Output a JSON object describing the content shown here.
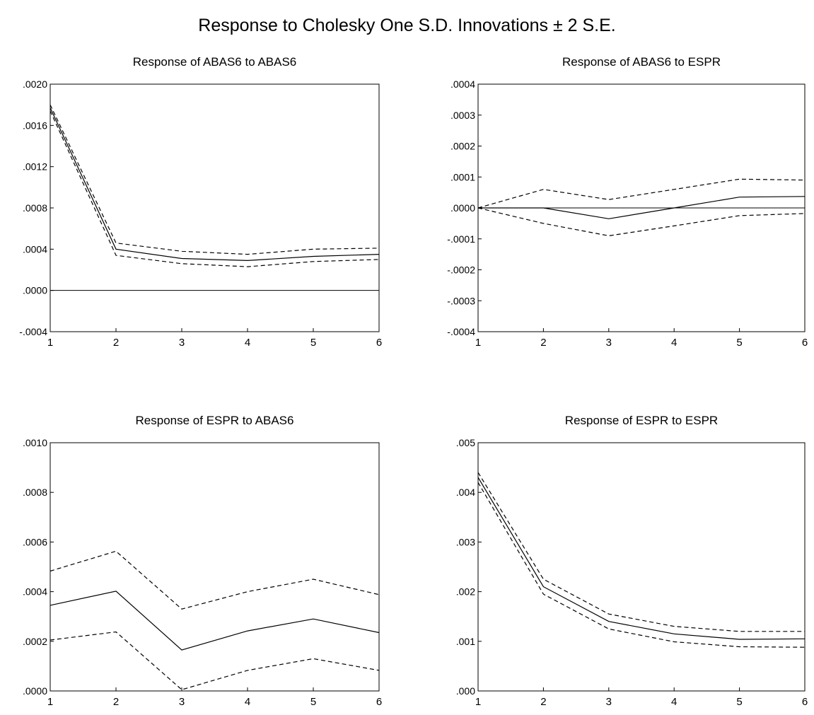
{
  "title": "Response to Cholesky One S.D. Innovations ± 2 S.E.",
  "chart_data": [
    {
      "type": "line",
      "title": "Response of ABAS6 to ABAS6",
      "x": [
        1,
        2,
        3,
        4,
        5,
        6
      ],
      "ylim": [
        -0.0004,
        0.002
      ],
      "yticks": [
        ".0020",
        ".0016",
        ".0012",
        ".0008",
        ".0004",
        ".0000",
        "-.0004"
      ],
      "zero_line": true,
      "series": [
        {
          "style": "solid",
          "values": [
            0.00177,
            0.0004,
            0.00031,
            0.00029,
            0.00033,
            0.00035
          ]
        },
        {
          "style": "dashed",
          "values": [
            0.0018,
            0.00046,
            0.00038,
            0.00035,
            0.0004,
            0.00041
          ]
        },
        {
          "style": "dashed",
          "values": [
            0.00174,
            0.00034,
            0.00026,
            0.00023,
            0.00028,
            0.0003
          ]
        }
      ]
    },
    {
      "type": "line",
      "title": "Response of ABAS6 to ESPR",
      "x": [
        1,
        2,
        3,
        4,
        5,
        6
      ],
      "ylim": [
        -0.0004,
        0.0004
      ],
      "yticks": [
        ".0004",
        ".0003",
        ".0002",
        ".0001",
        ".0000",
        "-.0001",
        "-.0002",
        "-.0003",
        "-.0004"
      ],
      "zero_line": true,
      "series": [
        {
          "style": "solid",
          "values": [
            0.0,
            0.0,
            -3.5e-05,
            0.0,
            3.5e-05,
            3.7e-05
          ]
        },
        {
          "style": "dashed",
          "values": [
            0.0,
            6e-05,
            2.7e-05,
            6e-05,
            9.3e-05,
            9e-05
          ]
        },
        {
          "style": "dashed",
          "values": [
            0.0,
            -5e-05,
            -9e-05,
            -5.8e-05,
            -2.5e-05,
            -1.8e-05
          ]
        }
      ]
    },
    {
      "type": "line",
      "title": "Response of ESPR to ABAS6",
      "x": [
        1,
        2,
        3,
        4,
        5,
        6
      ],
      "ylim": [
        0.0,
        0.001
      ],
      "yticks": [
        ".0010",
        ".0008",
        ".0006",
        ".0004",
        ".0002",
        ".0000"
      ],
      "zero_line": false,
      "series": [
        {
          "style": "solid",
          "values": [
            0.000345,
            0.000402,
            0.000165,
            0.000242,
            0.00029,
            0.000235
          ]
        },
        {
          "style": "dashed",
          "values": [
            0.000483,
            0.000563,
            0.00033,
            0.0004,
            0.00045,
            0.000388
          ]
        },
        {
          "style": "dashed",
          "values": [
            0.000205,
            0.000238,
            5e-06,
            8.3e-05,
            0.00013,
            8.3e-05
          ]
        }
      ]
    },
    {
      "type": "line",
      "title": "Response of ESPR to ESPR",
      "x": [
        1,
        2,
        3,
        4,
        5,
        6
      ],
      "ylim": [
        0.0,
        0.005
      ],
      "yticks": [
        ".005",
        ".004",
        ".003",
        ".002",
        ".001",
        ".000"
      ],
      "zero_line": false,
      "series": [
        {
          "style": "solid",
          "values": [
            0.0043,
            0.0021,
            0.0014,
            0.00115,
            0.00104,
            0.00105
          ]
        },
        {
          "style": "dashed",
          "values": [
            0.0044,
            0.00225,
            0.00155,
            0.0013,
            0.0012,
            0.0012
          ]
        },
        {
          "style": "dashed",
          "values": [
            0.0042,
            0.00195,
            0.00125,
            0.00099,
            0.00089,
            0.00088
          ]
        }
      ]
    }
  ]
}
